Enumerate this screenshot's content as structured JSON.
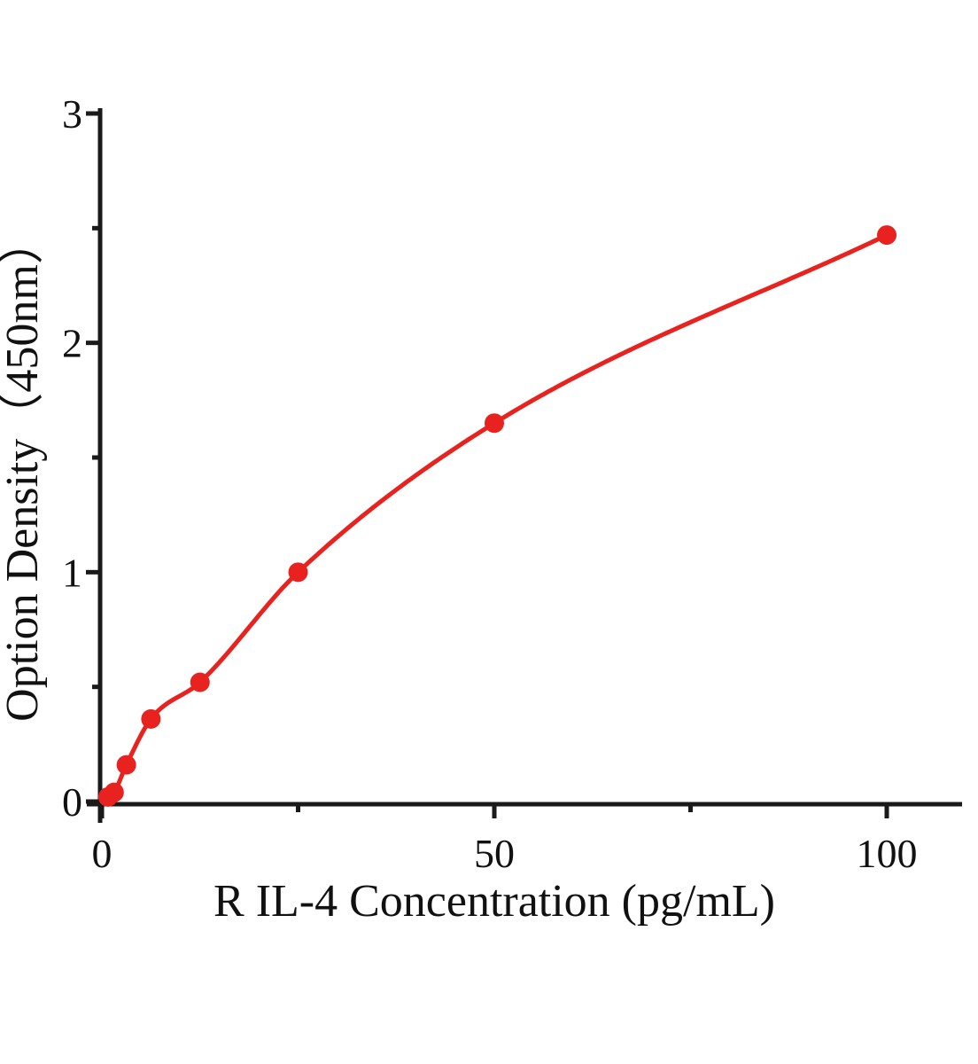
{
  "chart_data": {
    "type": "scatter",
    "title": "",
    "xlabel": "R IL-4 Concentration (pg/mL)",
    "ylabel": "Option Density（450nm）",
    "x": [
      0.78,
      1.56,
      3.12,
      6.25,
      12.5,
      25,
      50,
      100
    ],
    "y": [
      0.02,
      0.04,
      0.16,
      0.36,
      0.52,
      1.0,
      1.65,
      2.47
    ],
    "curve_start": [
      0,
      0
    ],
    "has_fit_curve": true,
    "xlim": [
      0,
      109.5
    ],
    "ylim": [
      0,
      3
    ],
    "x_ticks": {
      "major": [
        0,
        50,
        100
      ],
      "labels": [
        "0",
        "50",
        "100"
      ],
      "minor": [
        25,
        75
      ]
    },
    "y_ticks": {
      "major": [
        0,
        1,
        2,
        3
      ],
      "labels": [
        "0",
        "1",
        "2",
        "3"
      ],
      "minor": [
        0.5,
        1.5,
        2.5
      ]
    },
    "grid": false,
    "legend": null,
    "colors": {
      "curve": "#e8231f",
      "points": "#e8231f",
      "axis": "#1a1a1a",
      "background": "#ffffff"
    }
  }
}
